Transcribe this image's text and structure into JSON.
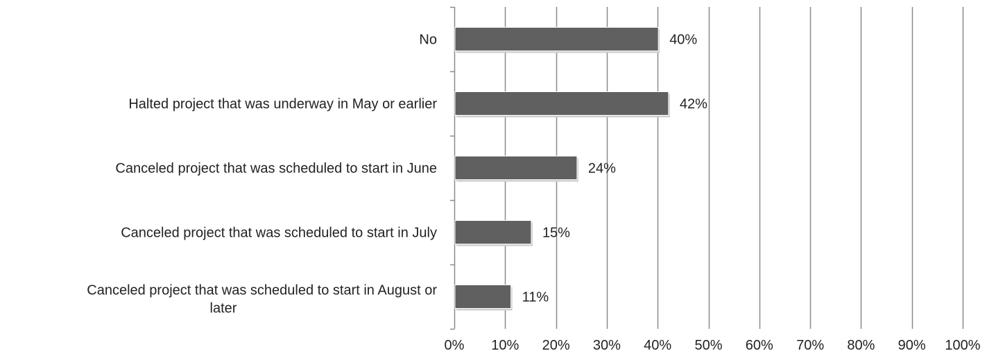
{
  "chart_data": {
    "type": "bar",
    "orientation": "horizontal",
    "categories": [
      "No",
      "Halted project that was underway in May or earlier",
      "Canceled project that was scheduled to start in June",
      "Canceled project that was scheduled to start in July",
      "Canceled project that was scheduled to start in August or later"
    ],
    "category_lines": [
      [
        "No"
      ],
      [
        "Halted project that was underway in May or earlier"
      ],
      [
        "Canceled project that was scheduled to start in June"
      ],
      [
        "Canceled project that was scheduled to start in July"
      ],
      [
        "Canceled project that was scheduled to start in August or",
        "later"
      ]
    ],
    "values": [
      40,
      42,
      24,
      15,
      11
    ],
    "data_labels": [
      "40%",
      "42%",
      "24%",
      "15%",
      "11%"
    ],
    "xlim": [
      0,
      100
    ],
    "x_ticks": [
      0,
      10,
      20,
      30,
      40,
      50,
      60,
      70,
      80,
      90,
      100
    ],
    "x_tick_labels": [
      "0%",
      "10%",
      "20%",
      "30%",
      "40%",
      "50%",
      "60%",
      "70%",
      "80%",
      "90%",
      "100%"
    ],
    "grid": true,
    "legend": "none",
    "bar_color": "#606060",
    "grid_color": "#8a8a8a"
  }
}
